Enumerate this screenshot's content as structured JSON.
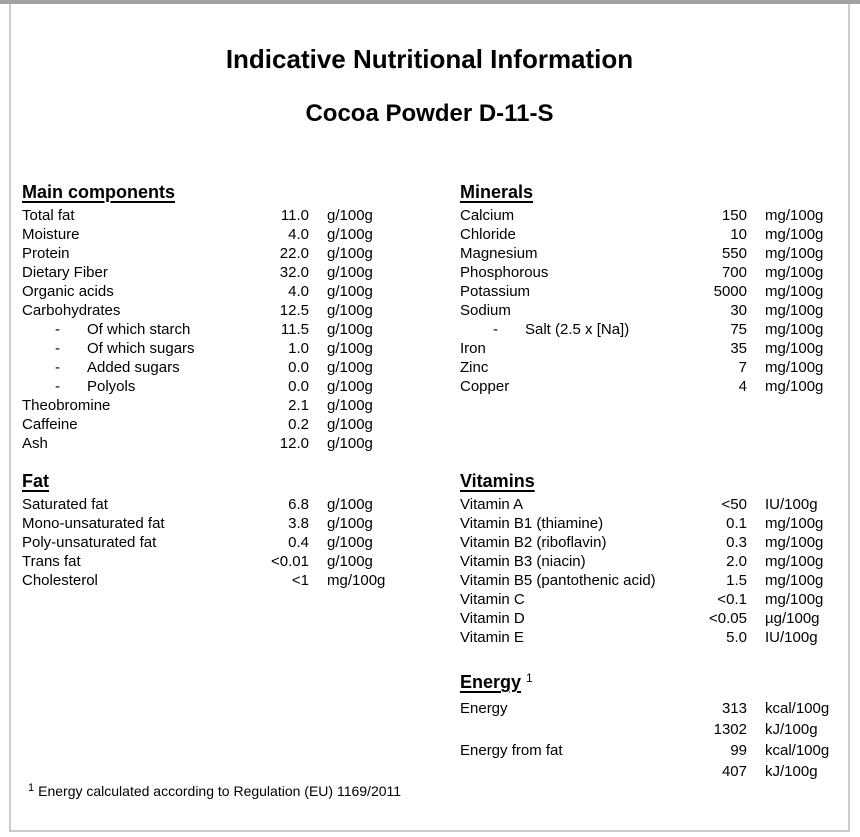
{
  "page": {
    "title": "Indicative Nutritional Information",
    "subtitle": "Cocoa Powder D-11-S",
    "footnote": {
      "marker": "1",
      "text": "Energy calculated according to Regulation (EU) 1169/2011"
    }
  },
  "ui": {
    "sub_item_dash": "-",
    "text_color": "#000000",
    "page_border_top_color": "#a2a2a2",
    "page_border_color": "#cccccc",
    "background_color": "#ffffff"
  },
  "sections": {
    "main_components": {
      "heading": "Main components",
      "rows": [
        {
          "label": "Total fat",
          "value": "11.0",
          "unit": "g/100g",
          "indent": false
        },
        {
          "label": "Moisture",
          "value": "4.0",
          "unit": "g/100g",
          "indent": false
        },
        {
          "label": "Protein",
          "value": "22.0",
          "unit": "g/100g",
          "indent": false
        },
        {
          "label": "Dietary Fiber",
          "value": "32.0",
          "unit": "g/100g",
          "indent": false
        },
        {
          "label": "Organic acids",
          "value": "4.0",
          "unit": "g/100g",
          "indent": false
        },
        {
          "label": "Carbohydrates",
          "value": "12.5",
          "unit": "g/100g",
          "indent": false
        },
        {
          "label": "Of which starch",
          "value": "11.5",
          "unit": "g/100g",
          "indent": true
        },
        {
          "label": "Of which sugars",
          "value": "1.0",
          "unit": "g/100g",
          "indent": true
        },
        {
          "label": "Added sugars",
          "value": "0.0",
          "unit": "g/100g",
          "indent": true
        },
        {
          "label": "Polyols",
          "value": "0.0",
          "unit": "g/100g",
          "indent": true
        },
        {
          "label": "Theobromine",
          "value": "2.1",
          "unit": "g/100g",
          "indent": false
        },
        {
          "label": "Caffeine",
          "value": "0.2",
          "unit": "g/100g",
          "indent": false
        },
        {
          "label": "Ash",
          "value": "12.0",
          "unit": "g/100g",
          "indent": false
        }
      ]
    },
    "fat": {
      "heading": "Fat",
      "rows": [
        {
          "label": "Saturated fat",
          "value": "6.8",
          "unit": "g/100g",
          "indent": false
        },
        {
          "label": "Mono-unsaturated fat",
          "value": "3.8",
          "unit": "g/100g",
          "indent": false
        },
        {
          "label": "Poly-unsaturated fat",
          "value": "0.4",
          "unit": "g/100g",
          "indent": false
        },
        {
          "label": "Trans fat",
          "value": "<0.01",
          "unit": "g/100g",
          "indent": false
        },
        {
          "label": "Cholesterol",
          "value": "<1",
          "unit": "mg/100g",
          "indent": false
        }
      ]
    },
    "minerals": {
      "heading": "Minerals",
      "rows": [
        {
          "label": "Calcium",
          "value": "150",
          "unit": "mg/100g",
          "indent": false
        },
        {
          "label": "Chloride",
          "value": "10",
          "unit": "mg/100g",
          "indent": false
        },
        {
          "label": "Magnesium",
          "value": "550",
          "unit": "mg/100g",
          "indent": false
        },
        {
          "label": "Phosphorous",
          "value": "700",
          "unit": "mg/100g",
          "indent": false
        },
        {
          "label": "Potassium",
          "value": "5000",
          "unit": "mg/100g",
          "indent": false
        },
        {
          "label": "Sodium",
          "value": "30",
          "unit": "mg/100g",
          "indent": false
        },
        {
          "label": "Salt (2.5 x [Na])",
          "value": "75",
          "unit": "mg/100g",
          "indent": true
        },
        {
          "label": "Iron",
          "value": "35",
          "unit": "mg/100g",
          "indent": false
        },
        {
          "label": "Zinc",
          "value": "7",
          "unit": "mg/100g",
          "indent": false
        },
        {
          "label": "Copper",
          "value": "4",
          "unit": "mg/100g",
          "indent": false
        }
      ]
    },
    "vitamins": {
      "heading": "Vitamins",
      "rows": [
        {
          "label": "Vitamin A",
          "value": "<50",
          "unit": "IU/100g",
          "indent": false
        },
        {
          "label": "Vitamin B1 (thiamine)",
          "value": "0.1",
          "unit": "mg/100g",
          "indent": false
        },
        {
          "label": "Vitamin B2 (riboflavin)",
          "value": "0.3",
          "unit": "mg/100g",
          "indent": false
        },
        {
          "label": "Vitamin B3 (niacin)",
          "value": "2.0",
          "unit": "mg/100g",
          "indent": false
        },
        {
          "label": "Vitamin B5 (pantothenic acid)",
          "value": "1.5",
          "unit": "mg/100g",
          "indent": false
        },
        {
          "label": "Vitamin C",
          "value": "<0.1",
          "unit": "mg/100g",
          "indent": false
        },
        {
          "label": "Vitamin D",
          "value": "<0.05",
          "unit": "µg/100g",
          "indent": false
        },
        {
          "label": "Vitamin E",
          "value": "5.0",
          "unit": "IU/100g",
          "indent": false
        }
      ]
    },
    "energy": {
      "heading": "Energy",
      "superscript": "1",
      "rows": [
        {
          "label": "Energy",
          "value": "313",
          "unit": "kcal/100g",
          "indent": false
        },
        {
          "label": "",
          "value": "1302",
          "unit": "kJ/100g",
          "indent": false
        },
        {
          "label": "Energy from fat",
          "value": "99",
          "unit": "kcal/100g",
          "indent": false
        },
        {
          "label": "",
          "value": "407",
          "unit": "kJ/100g",
          "indent": false
        }
      ]
    }
  }
}
